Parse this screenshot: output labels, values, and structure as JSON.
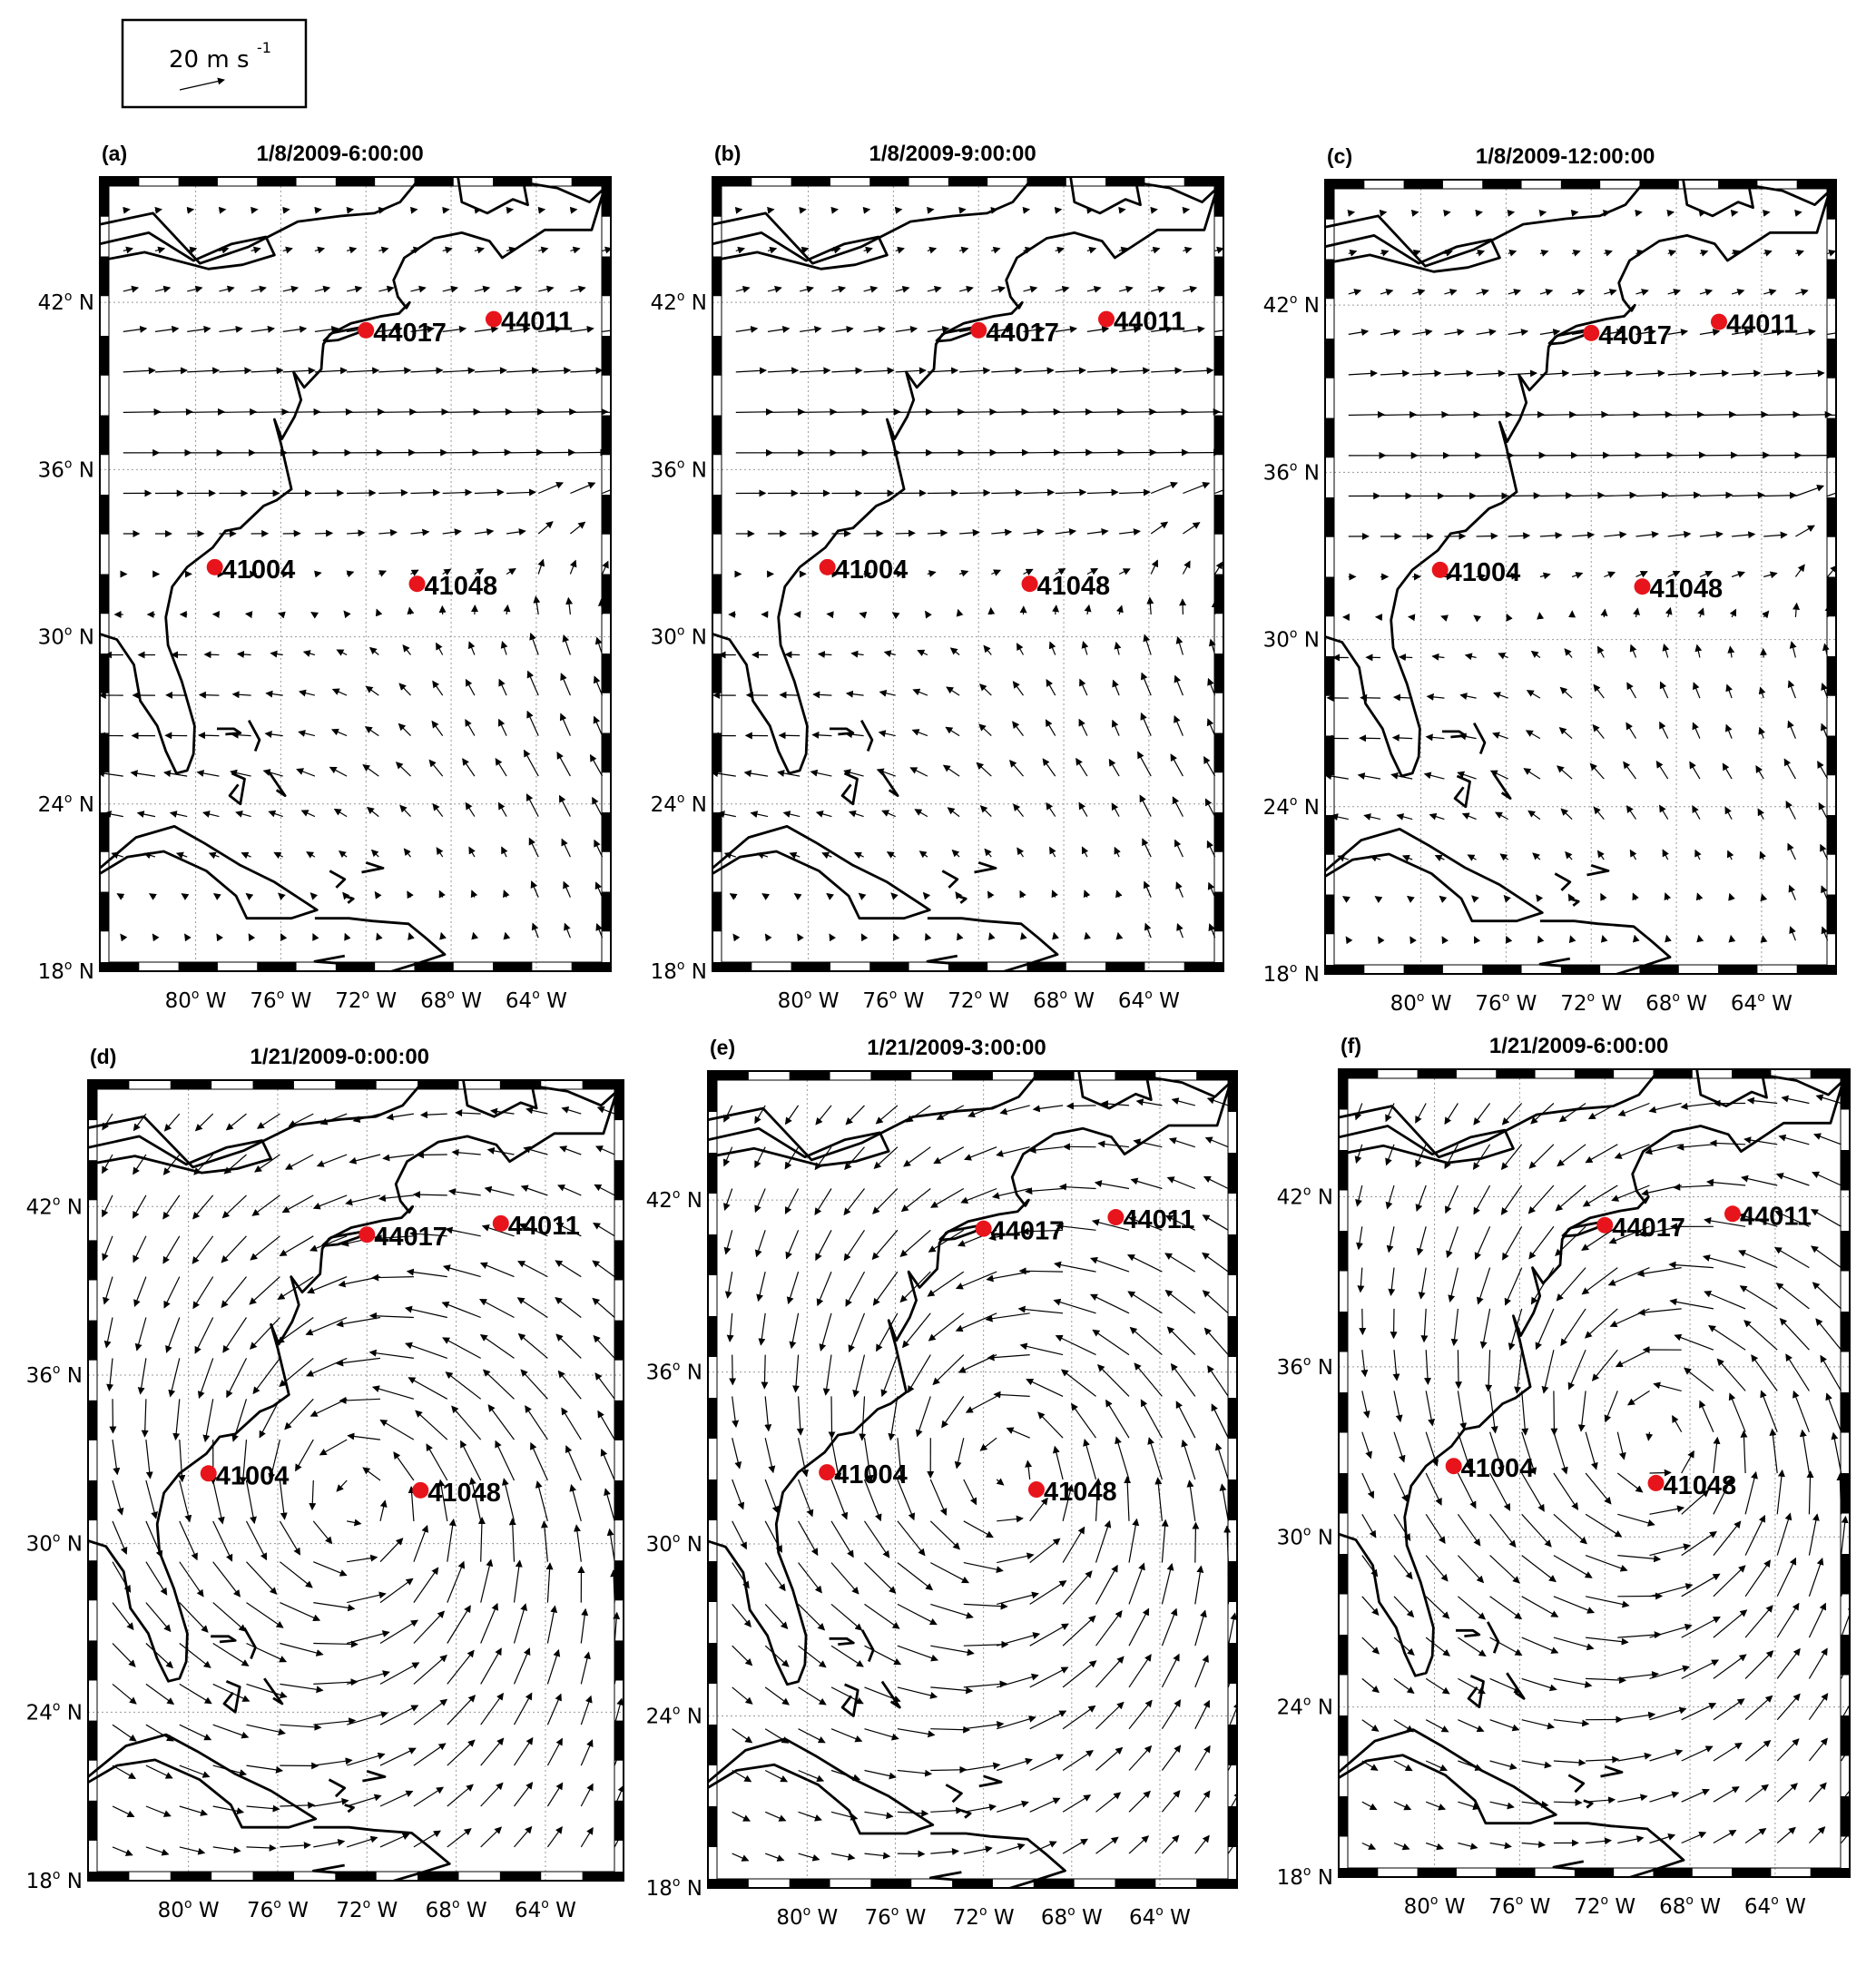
{
  "figure": {
    "scale_box": {
      "value_label": "20 m s",
      "unit_exponent": "-1"
    },
    "lat_ticks": [
      {
        "value": 42,
        "deg": "42",
        "hemi": "N"
      },
      {
        "value": 36,
        "deg": "36",
        "hemi": "N"
      },
      {
        "value": 30,
        "deg": "30",
        "hemi": "N"
      },
      {
        "value": 24,
        "deg": "24",
        "hemi": "N"
      },
      {
        "value": 18,
        "deg": "18",
        "hemi": "N"
      }
    ],
    "lon_ticks": [
      {
        "value": -80,
        "deg": "80",
        "hemi": "W"
      },
      {
        "value": -76,
        "deg": "76",
        "hemi": "W"
      },
      {
        "value": -72,
        "deg": "72",
        "hemi": "W"
      },
      {
        "value": -68,
        "deg": "68",
        "hemi": "W"
      },
      {
        "value": -64,
        "deg": "64",
        "hemi": "W"
      }
    ],
    "extent": {
      "lon_min": -84.5,
      "lon_max": -60.5,
      "lat_min": 18,
      "lat_max": 46.5
    },
    "colors": {
      "buoy": "#e8141b",
      "arrow": "#000000",
      "coast": "#000000",
      "grid": "#999999"
    },
    "buoys": [
      {
        "id": "44017",
        "lon": -72.0,
        "lat": 41.0
      },
      {
        "id": "44011",
        "lon": -66.0,
        "lat": 41.4
      },
      {
        "id": "41004",
        "lon": -79.1,
        "lat": 32.5
      },
      {
        "id": "41048",
        "lon": -69.6,
        "lat": 31.9
      }
    ],
    "panels": [
      {
        "tag": "(a)",
        "title": "1/8/2009-6:00:00",
        "regime": "zonal",
        "phase": 0
      },
      {
        "tag": "(b)",
        "title": "1/8/2009-9:00:00",
        "regime": "zonal",
        "phase": 1
      },
      {
        "tag": "(c)",
        "title": "1/8/2009-12:00:00",
        "regime": "zonal",
        "phase": 2
      },
      {
        "tag": "(d)",
        "title": "1/21/2009-0:00:00",
        "regime": "cyclone",
        "center": {
          "lon": -72.5,
          "lat": 31.5
        }
      },
      {
        "tag": "(e)",
        "title": "1/21/2009-3:00:00",
        "regime": "cyclone",
        "center": {
          "lon": -71.0,
          "lat": 32.5
        }
      },
      {
        "tag": "(f)",
        "title": "1/21/2009-6:00:00",
        "regime": "cyclone",
        "center": {
          "lon": -69.5,
          "lat": 33.5
        }
      }
    ]
  }
}
